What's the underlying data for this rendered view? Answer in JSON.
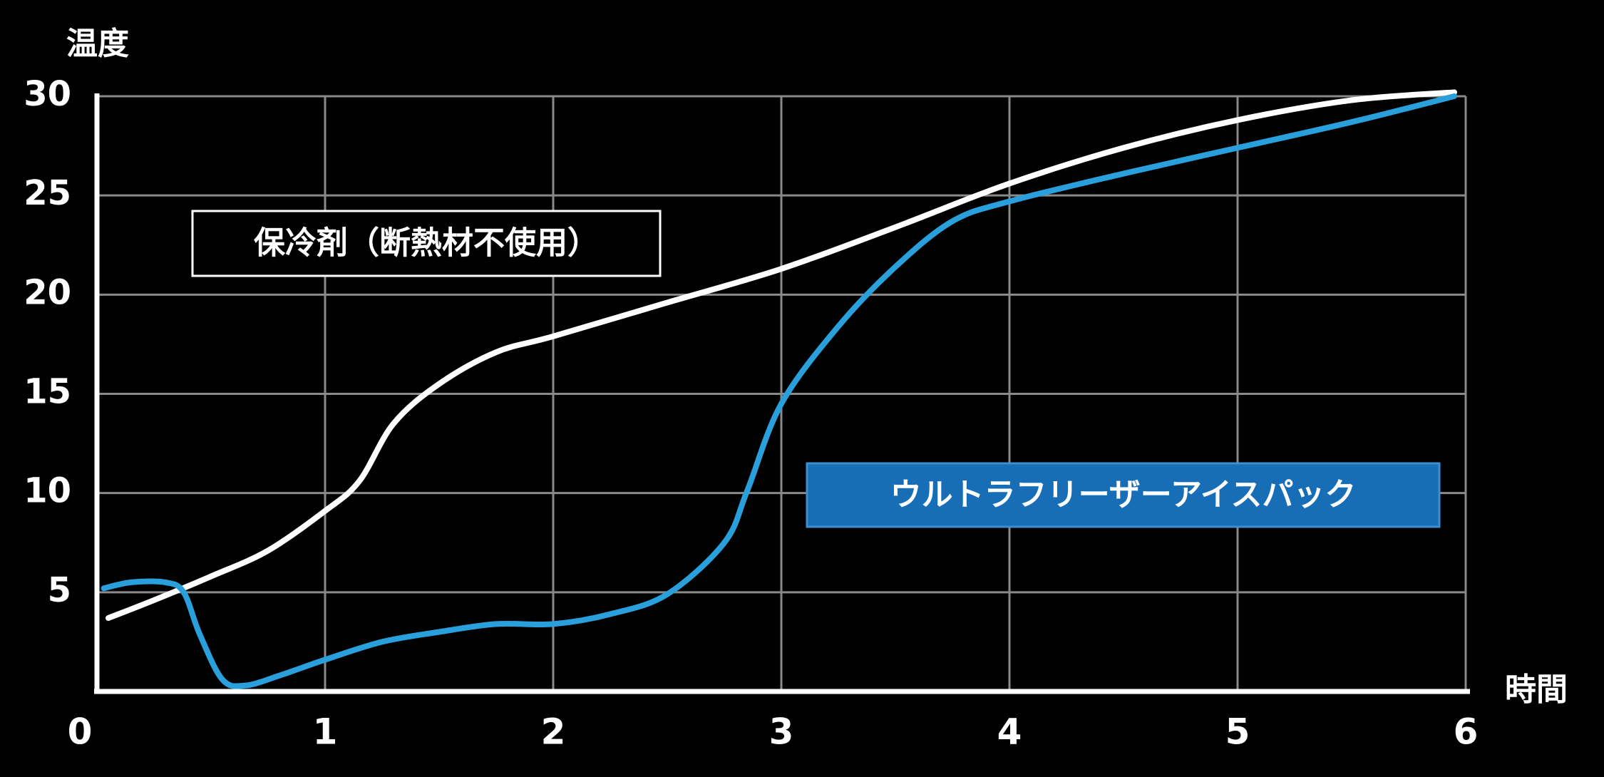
{
  "chart_data": {
    "type": "line",
    "x_label": "時間",
    "y_label": "温度",
    "xlim": [
      0,
      6
    ],
    "xticks": [
      0,
      1,
      2,
      3,
      4,
      5,
      6
    ],
    "ylim": [
      0,
      30
    ],
    "yticks": [
      5,
      10,
      15,
      20,
      25,
      30
    ],
    "grid": true,
    "series": [
      {
        "name": "保冷剤（断熱材不使用）",
        "color": "#ffffff",
        "x": [
          0.05,
          0.25,
          0.5,
          0.75,
          1.0,
          1.15,
          1.3,
          1.5,
          1.75,
          2.0,
          2.5,
          3.0,
          3.5,
          4.0,
          4.5,
          5.0,
          5.5,
          5.95
        ],
        "values": [
          3.7,
          4.6,
          5.8,
          7.1,
          9.1,
          10.6,
          13.5,
          15.5,
          17.1,
          17.9,
          19.6,
          21.3,
          23.4,
          25.6,
          27.4,
          28.8,
          29.8,
          30.2
        ]
      },
      {
        "name": "ウルトラフリーザーアイスパック",
        "color": "#29a0dc",
        "x": [
          0.03,
          0.15,
          0.3,
          0.38,
          0.45,
          0.55,
          0.65,
          0.8,
          1.0,
          1.25,
          1.5,
          1.75,
          2.0,
          2.25,
          2.5,
          2.75,
          2.85,
          3.0,
          3.25,
          3.5,
          3.75,
          4.0,
          4.5,
          5.0,
          5.5,
          5.95
        ],
        "values": [
          5.2,
          5.5,
          5.5,
          5.0,
          2.9,
          0.6,
          0.3,
          0.8,
          1.6,
          2.5,
          3.0,
          3.4,
          3.4,
          3.9,
          4.9,
          7.5,
          10.1,
          14.5,
          18.4,
          21.4,
          23.7,
          24.7,
          26.1,
          27.4,
          28.7,
          30.0
        ]
      }
    ]
  }
}
